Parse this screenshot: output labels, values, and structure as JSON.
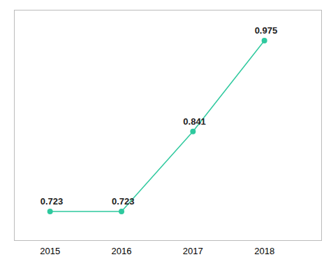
{
  "chart_data": {
    "type": "line",
    "x": [
      2015,
      2016,
      2017,
      2018
    ],
    "values": [
      0.723,
      0.723,
      0.841,
      0.975
    ],
    "color": "#2ec99e",
    "marker": "circle",
    "xlim": [
      2014.5,
      2018.8
    ],
    "xticks": [
      2015,
      2016,
      2017,
      2018
    ],
    "ylim": [
      0.68,
      1.02
    ],
    "data_labels": true,
    "tick_labels": "x",
    "grid": false
  }
}
